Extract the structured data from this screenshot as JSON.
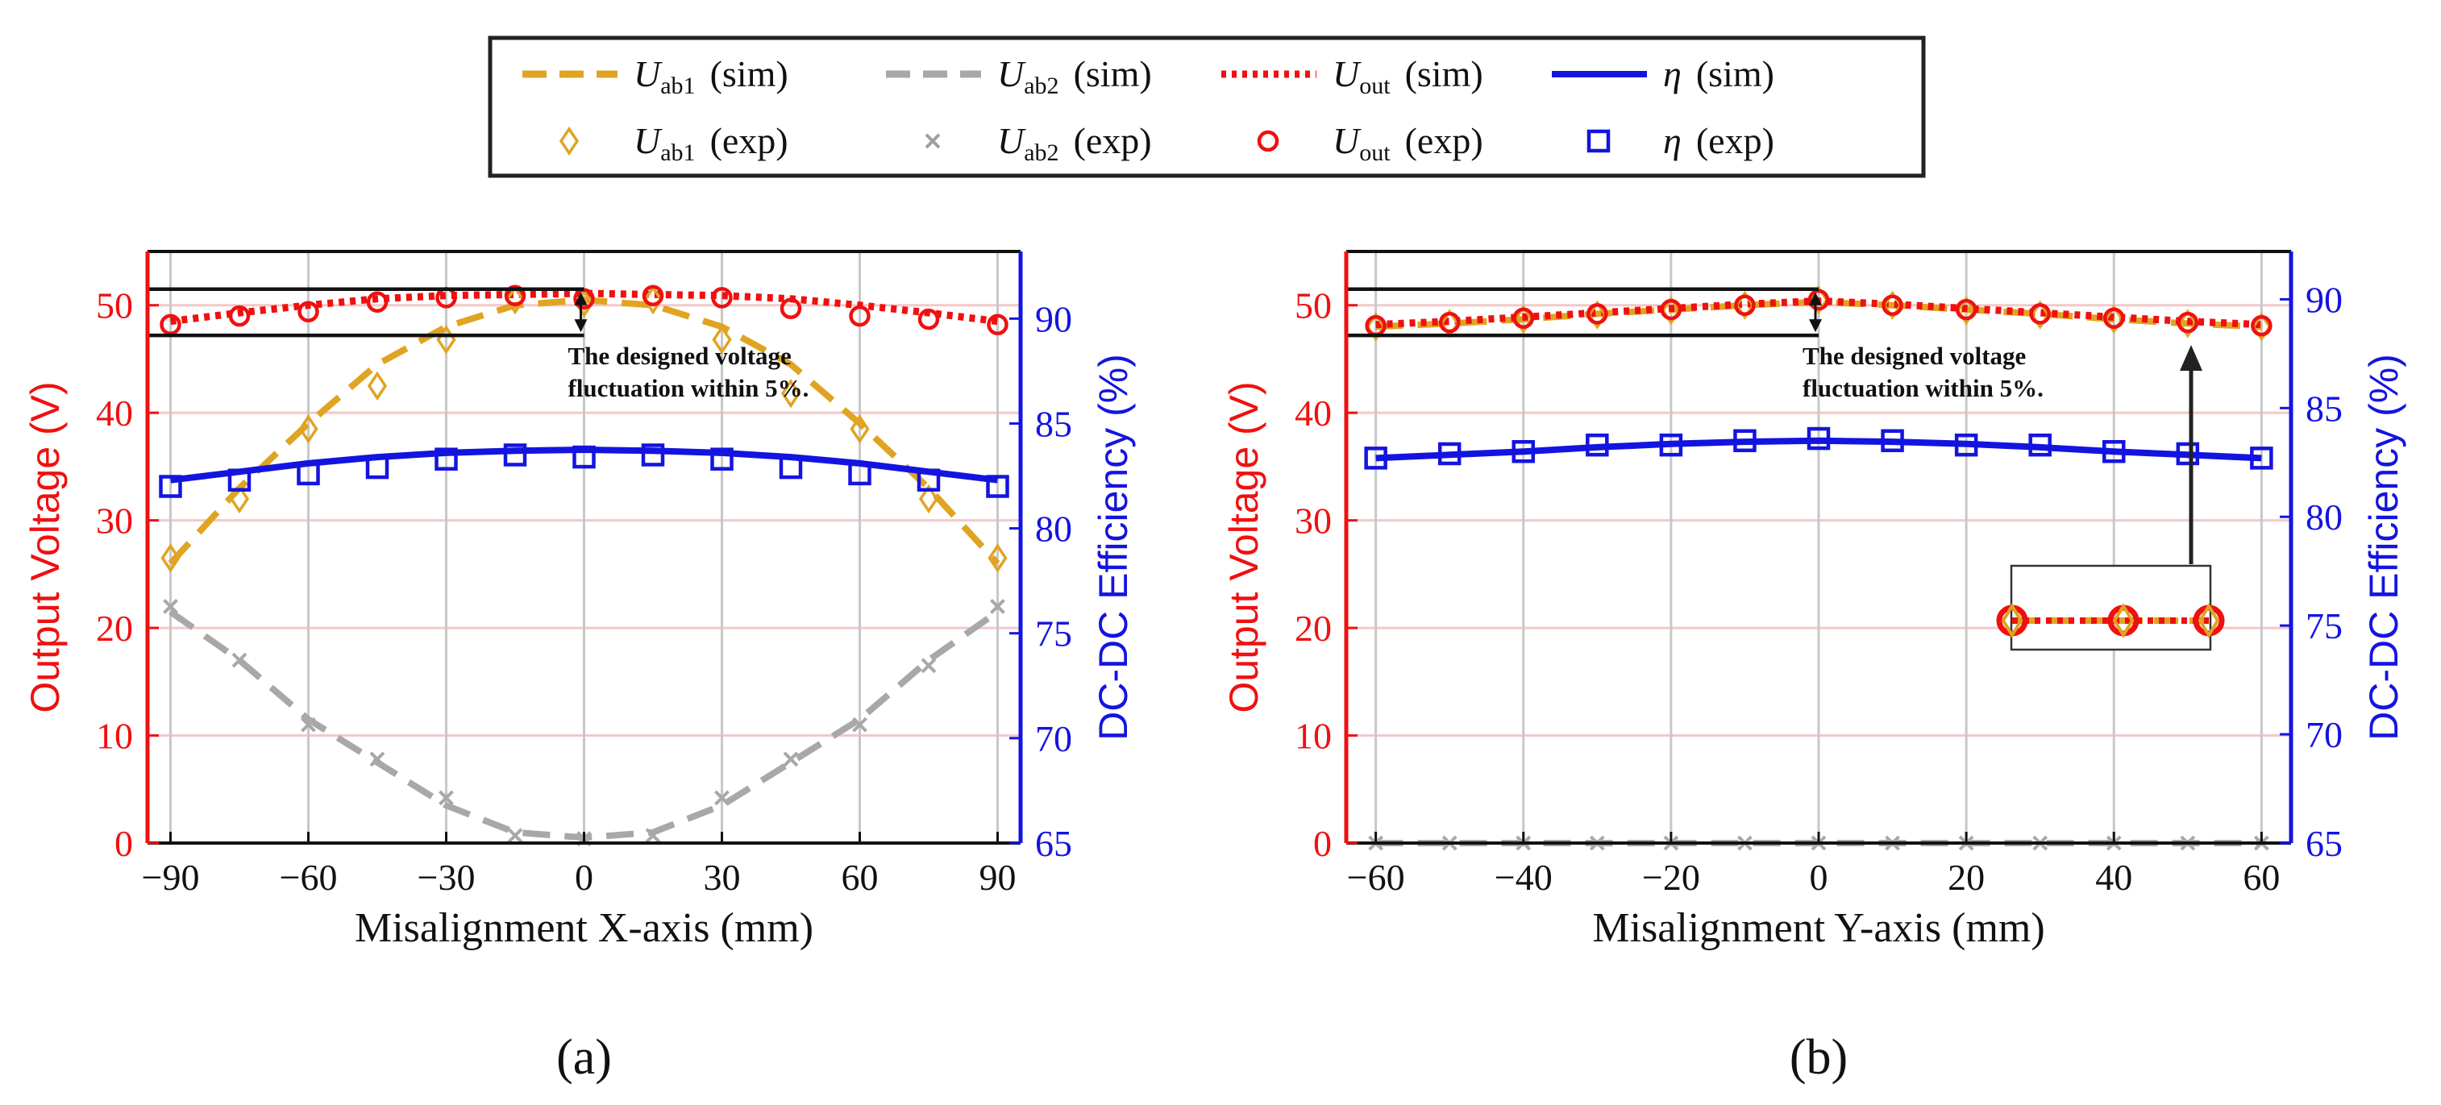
{
  "legend": {
    "entries": [
      {
        "key": "uab1_sim",
        "symbol": "U",
        "sub": "ab1",
        "label": "(sim)",
        "color": "#E0A422",
        "style": "dash"
      },
      {
        "key": "uab2_sim",
        "symbol": "U",
        "sub": "ab2",
        "label": "(sim)",
        "color": "#A8A8A8",
        "style": "dash"
      },
      {
        "key": "uout_sim",
        "symbol": "U",
        "sub": "out",
        "label": "(sim)",
        "color": "#F01010",
        "style": "dot"
      },
      {
        "key": "eta_sim",
        "symbol": "η",
        "sub": "",
        "label": "(sim)",
        "color": "#1414E0",
        "style": "solid"
      },
      {
        "key": "uab1_exp",
        "symbol": "U",
        "sub": "ab1",
        "label": "(exp)",
        "color": "#E0A422",
        "style": "diamond"
      },
      {
        "key": "uab2_exp",
        "symbol": "U",
        "sub": "ab2",
        "label": "(exp)",
        "color": "#A0A0A0",
        "style": "x"
      },
      {
        "key": "uout_exp",
        "symbol": "U",
        "sub": "out",
        "label": "(exp)",
        "color": "#F01010",
        "style": "circle"
      },
      {
        "key": "eta_exp",
        "symbol": "η",
        "sub": "",
        "label": "(exp)",
        "color": "#1414E0",
        "style": "square"
      }
    ]
  },
  "colors": {
    "uab1": "#E0A422",
    "uab2": "#A8A8A8",
    "uout": "#F01010",
    "eta": "#1414E0",
    "gridh": "#F4C8C8",
    "gridv": "#C8C8C8",
    "arrow": "#222222"
  },
  "chart_data": [
    {
      "type": "line",
      "panel_label": "(a)",
      "xlabel": "Misalignment X-axis (mm)",
      "ylabel": "Output Voltage (V)",
      "y2label": "DC-DC Efficiency (%)",
      "xlim": [
        -95,
        95
      ],
      "ylim": [
        0,
        55
      ],
      "y2lim": [
        65,
        93.2
      ],
      "xticks": [
        -90,
        -60,
        -30,
        0,
        30,
        60,
        90
      ],
      "xticklabels": [
        "−90",
        "−60",
        "−30",
        "0",
        "30",
        "60",
        "90"
      ],
      "yticks": [
        0,
        10,
        20,
        30,
        40,
        50
      ],
      "y2ticks": [
        65,
        70,
        75,
        80,
        85,
        90
      ],
      "vgrid": [
        -90,
        -60,
        -30,
        0,
        30,
        60,
        90
      ],
      "hgrid": [
        10,
        20,
        30,
        40,
        50
      ],
      "annotation": {
        "lines": [
          "The designed voltage",
          "fluctuation within 5%."
        ],
        "band": [
          47.2,
          51.5
        ],
        "x": 0
      },
      "series": [
        {
          "name": "Uab1 (sim)",
          "key": "uab1_sim",
          "axis": "left",
          "x": [
            -90,
            -75,
            -60,
            -45,
            -30,
            -15,
            0,
            15,
            30,
            45,
            60,
            75,
            90
          ],
          "y": [
            26,
            33,
            39,
            44.5,
            48,
            50,
            50.5,
            50,
            48,
            44.5,
            39,
            33,
            26
          ]
        },
        {
          "name": "Uab2 (sim)",
          "key": "uab2_sim",
          "axis": "left",
          "x": [
            -90,
            -75,
            -60,
            -45,
            -30,
            -15,
            0,
            15,
            30,
            45,
            60,
            75,
            90
          ],
          "y": [
            21.5,
            17,
            11.5,
            7.5,
            3.5,
            1,
            0.5,
            1,
            3.5,
            7.5,
            11.5,
            17,
            21.5
          ]
        },
        {
          "name": "Uout (sim)",
          "key": "uout_sim",
          "axis": "left",
          "x": [
            -90,
            -75,
            -60,
            -45,
            -30,
            -15,
            0,
            15,
            30,
            45,
            60,
            75,
            90
          ],
          "y": [
            48.5,
            49.3,
            50,
            50.6,
            50.9,
            51,
            51.1,
            51,
            50.9,
            50.6,
            50,
            49.3,
            48.5
          ]
        },
        {
          "name": "η (sim)",
          "key": "eta_sim",
          "axis": "right",
          "x": [
            -90,
            -75,
            -60,
            -45,
            -30,
            -15,
            0,
            15,
            30,
            45,
            60,
            75,
            90
          ],
          "y": [
            82.3,
            82.7,
            83.1,
            83.4,
            83.6,
            83.7,
            83.75,
            83.7,
            83.6,
            83.4,
            83.1,
            82.7,
            82.3
          ]
        },
        {
          "name": "Uab1 (exp)",
          "key": "uab1_exp",
          "axis": "left",
          "x": [
            -90,
            -75,
            -60,
            -45,
            -30,
            -15,
            0,
            15,
            30,
            45,
            60,
            75,
            90
          ],
          "y": [
            26.5,
            32,
            38.5,
            42.5,
            46.8,
            50.5,
            50.2,
            50.5,
            46.8,
            41.8,
            38.5,
            32,
            26.5
          ]
        },
        {
          "name": "Uab2 (exp)",
          "key": "uab2_exp",
          "axis": "left",
          "x": [
            -90,
            -75,
            -60,
            -45,
            -30,
            -15,
            0,
            15,
            30,
            45,
            60,
            75,
            90
          ],
          "y": [
            22,
            17,
            11,
            7.8,
            4.2,
            0.7,
            0.4,
            0.7,
            4.2,
            7.8,
            11,
            16.5,
            22
          ]
        },
        {
          "name": "Uout (exp)",
          "key": "uout_exp",
          "axis": "left",
          "x": [
            -90,
            -75,
            -60,
            -45,
            -30,
            -15,
            0,
            15,
            30,
            45,
            60,
            75,
            90
          ],
          "y": [
            48.2,
            49,
            49.4,
            50.3,
            50.7,
            50.9,
            50.6,
            50.9,
            50.7,
            49.7,
            49,
            48.7,
            48.2
          ]
        },
        {
          "name": "η (exp)",
          "key": "eta_exp",
          "axis": "right",
          "x": [
            -90,
            -75,
            -60,
            -45,
            -30,
            -15,
            0,
            15,
            30,
            45,
            60,
            75,
            90
          ],
          "y": [
            82,
            82.3,
            82.6,
            82.9,
            83.3,
            83.5,
            83.4,
            83.5,
            83.3,
            82.9,
            82.6,
            82.3,
            82
          ]
        }
      ]
    },
    {
      "type": "line",
      "panel_label": "(b)",
      "xlabel": "Misalignment Y-axis (mm)",
      "ylabel": "Output Voltage (V)",
      "y2label": "DC-DC Efficiency (%)",
      "xlim": [
        -64,
        64
      ],
      "ylim": [
        0,
        55
      ],
      "y2lim": [
        65,
        92.2
      ],
      "xticks": [
        -60,
        -40,
        -20,
        0,
        20,
        40,
        60
      ],
      "xticklabels": [
        "−60",
        "−40",
        "−20",
        "0",
        "20",
        "40",
        "60"
      ],
      "yticks": [
        0,
        10,
        20,
        30,
        40,
        50
      ],
      "y2ticks": [
        65,
        70,
        75,
        80,
        85,
        90
      ],
      "vgrid": [
        -60,
        -40,
        -20,
        0,
        20,
        40,
        60
      ],
      "hgrid": [
        10,
        20,
        30,
        40,
        50
      ],
      "annotation": {
        "lines": [
          "The designed voltage",
          "fluctuation within 5%."
        ],
        "band": [
          47.2,
          51.5
        ],
        "x": 0
      },
      "series": [
        {
          "name": "Uab1 (sim)",
          "key": "uab1_sim",
          "axis": "left",
          "x": [
            -60,
            -50,
            -40,
            -30,
            -20,
            -10,
            0,
            10,
            20,
            30,
            40,
            50,
            60
          ],
          "y": [
            48,
            48.3,
            48.7,
            49.2,
            49.6,
            50,
            50.3,
            50,
            49.6,
            49.2,
            48.7,
            48.3,
            48
          ]
        },
        {
          "name": "Uab2 (sim)",
          "key": "uab2_sim",
          "axis": "left",
          "x": [
            -60,
            -50,
            -40,
            -30,
            -20,
            -10,
            0,
            10,
            20,
            30,
            40,
            50,
            60
          ],
          "y": [
            0,
            0,
            0,
            0,
            0,
            0,
            0,
            0,
            0,
            0,
            0,
            0,
            0
          ]
        },
        {
          "name": "Uout (sim)",
          "key": "uout_sim",
          "axis": "left",
          "x": [
            -60,
            -50,
            -40,
            -30,
            -20,
            -10,
            0,
            10,
            20,
            30,
            40,
            50,
            60
          ],
          "y": [
            48.2,
            48.5,
            48.9,
            49.3,
            49.7,
            50.1,
            50.4,
            50.1,
            49.7,
            49.3,
            48.9,
            48.5,
            48.2
          ]
        },
        {
          "name": "η (sim)",
          "key": "eta_sim",
          "axis": "right",
          "x": [
            -60,
            -50,
            -40,
            -30,
            -20,
            -10,
            0,
            10,
            20,
            30,
            40,
            50,
            60
          ],
          "y": [
            82.7,
            82.85,
            83,
            83.2,
            83.35,
            83.45,
            83.5,
            83.45,
            83.35,
            83.2,
            83,
            82.85,
            82.7
          ]
        },
        {
          "name": "Uab1 (exp)",
          "key": "uab1_exp",
          "axis": "left",
          "x": [
            -60,
            -50,
            -40,
            -30,
            -20,
            -10,
            0,
            10,
            20,
            30,
            40,
            50,
            60
          ],
          "y": [
            48,
            48.3,
            48.7,
            49.1,
            49.5,
            50,
            50.5,
            50,
            49.5,
            49.1,
            48.7,
            48.3,
            48
          ]
        },
        {
          "name": "Uab2 (exp)",
          "key": "uab2_exp",
          "axis": "left",
          "x": [
            -60,
            -50,
            -40,
            -30,
            -20,
            -10,
            0,
            10,
            20,
            30,
            40,
            50,
            60
          ],
          "y": [
            0,
            0,
            0,
            0,
            0,
            0,
            0,
            0,
            0,
            0,
            0,
            0,
            0
          ]
        },
        {
          "name": "Uout (exp)",
          "key": "uout_exp",
          "axis": "left",
          "x": [
            -60,
            -50,
            -40,
            -30,
            -20,
            -10,
            0,
            10,
            20,
            30,
            40,
            50,
            60
          ],
          "y": [
            48.1,
            48.4,
            48.8,
            49.2,
            49.6,
            50,
            50.5,
            50,
            49.6,
            49.2,
            48.8,
            48.4,
            48.1
          ]
        },
        {
          "name": "η (exp)",
          "key": "eta_exp",
          "axis": "right",
          "x": [
            -60,
            -50,
            -40,
            -30,
            -20,
            -10,
            0,
            10,
            20,
            30,
            40,
            50,
            60
          ],
          "y": [
            82.7,
            82.9,
            83,
            83.3,
            83.3,
            83.5,
            83.6,
            83.5,
            83.3,
            83.3,
            83,
            82.9,
            82.7
          ]
        }
      ]
    }
  ]
}
